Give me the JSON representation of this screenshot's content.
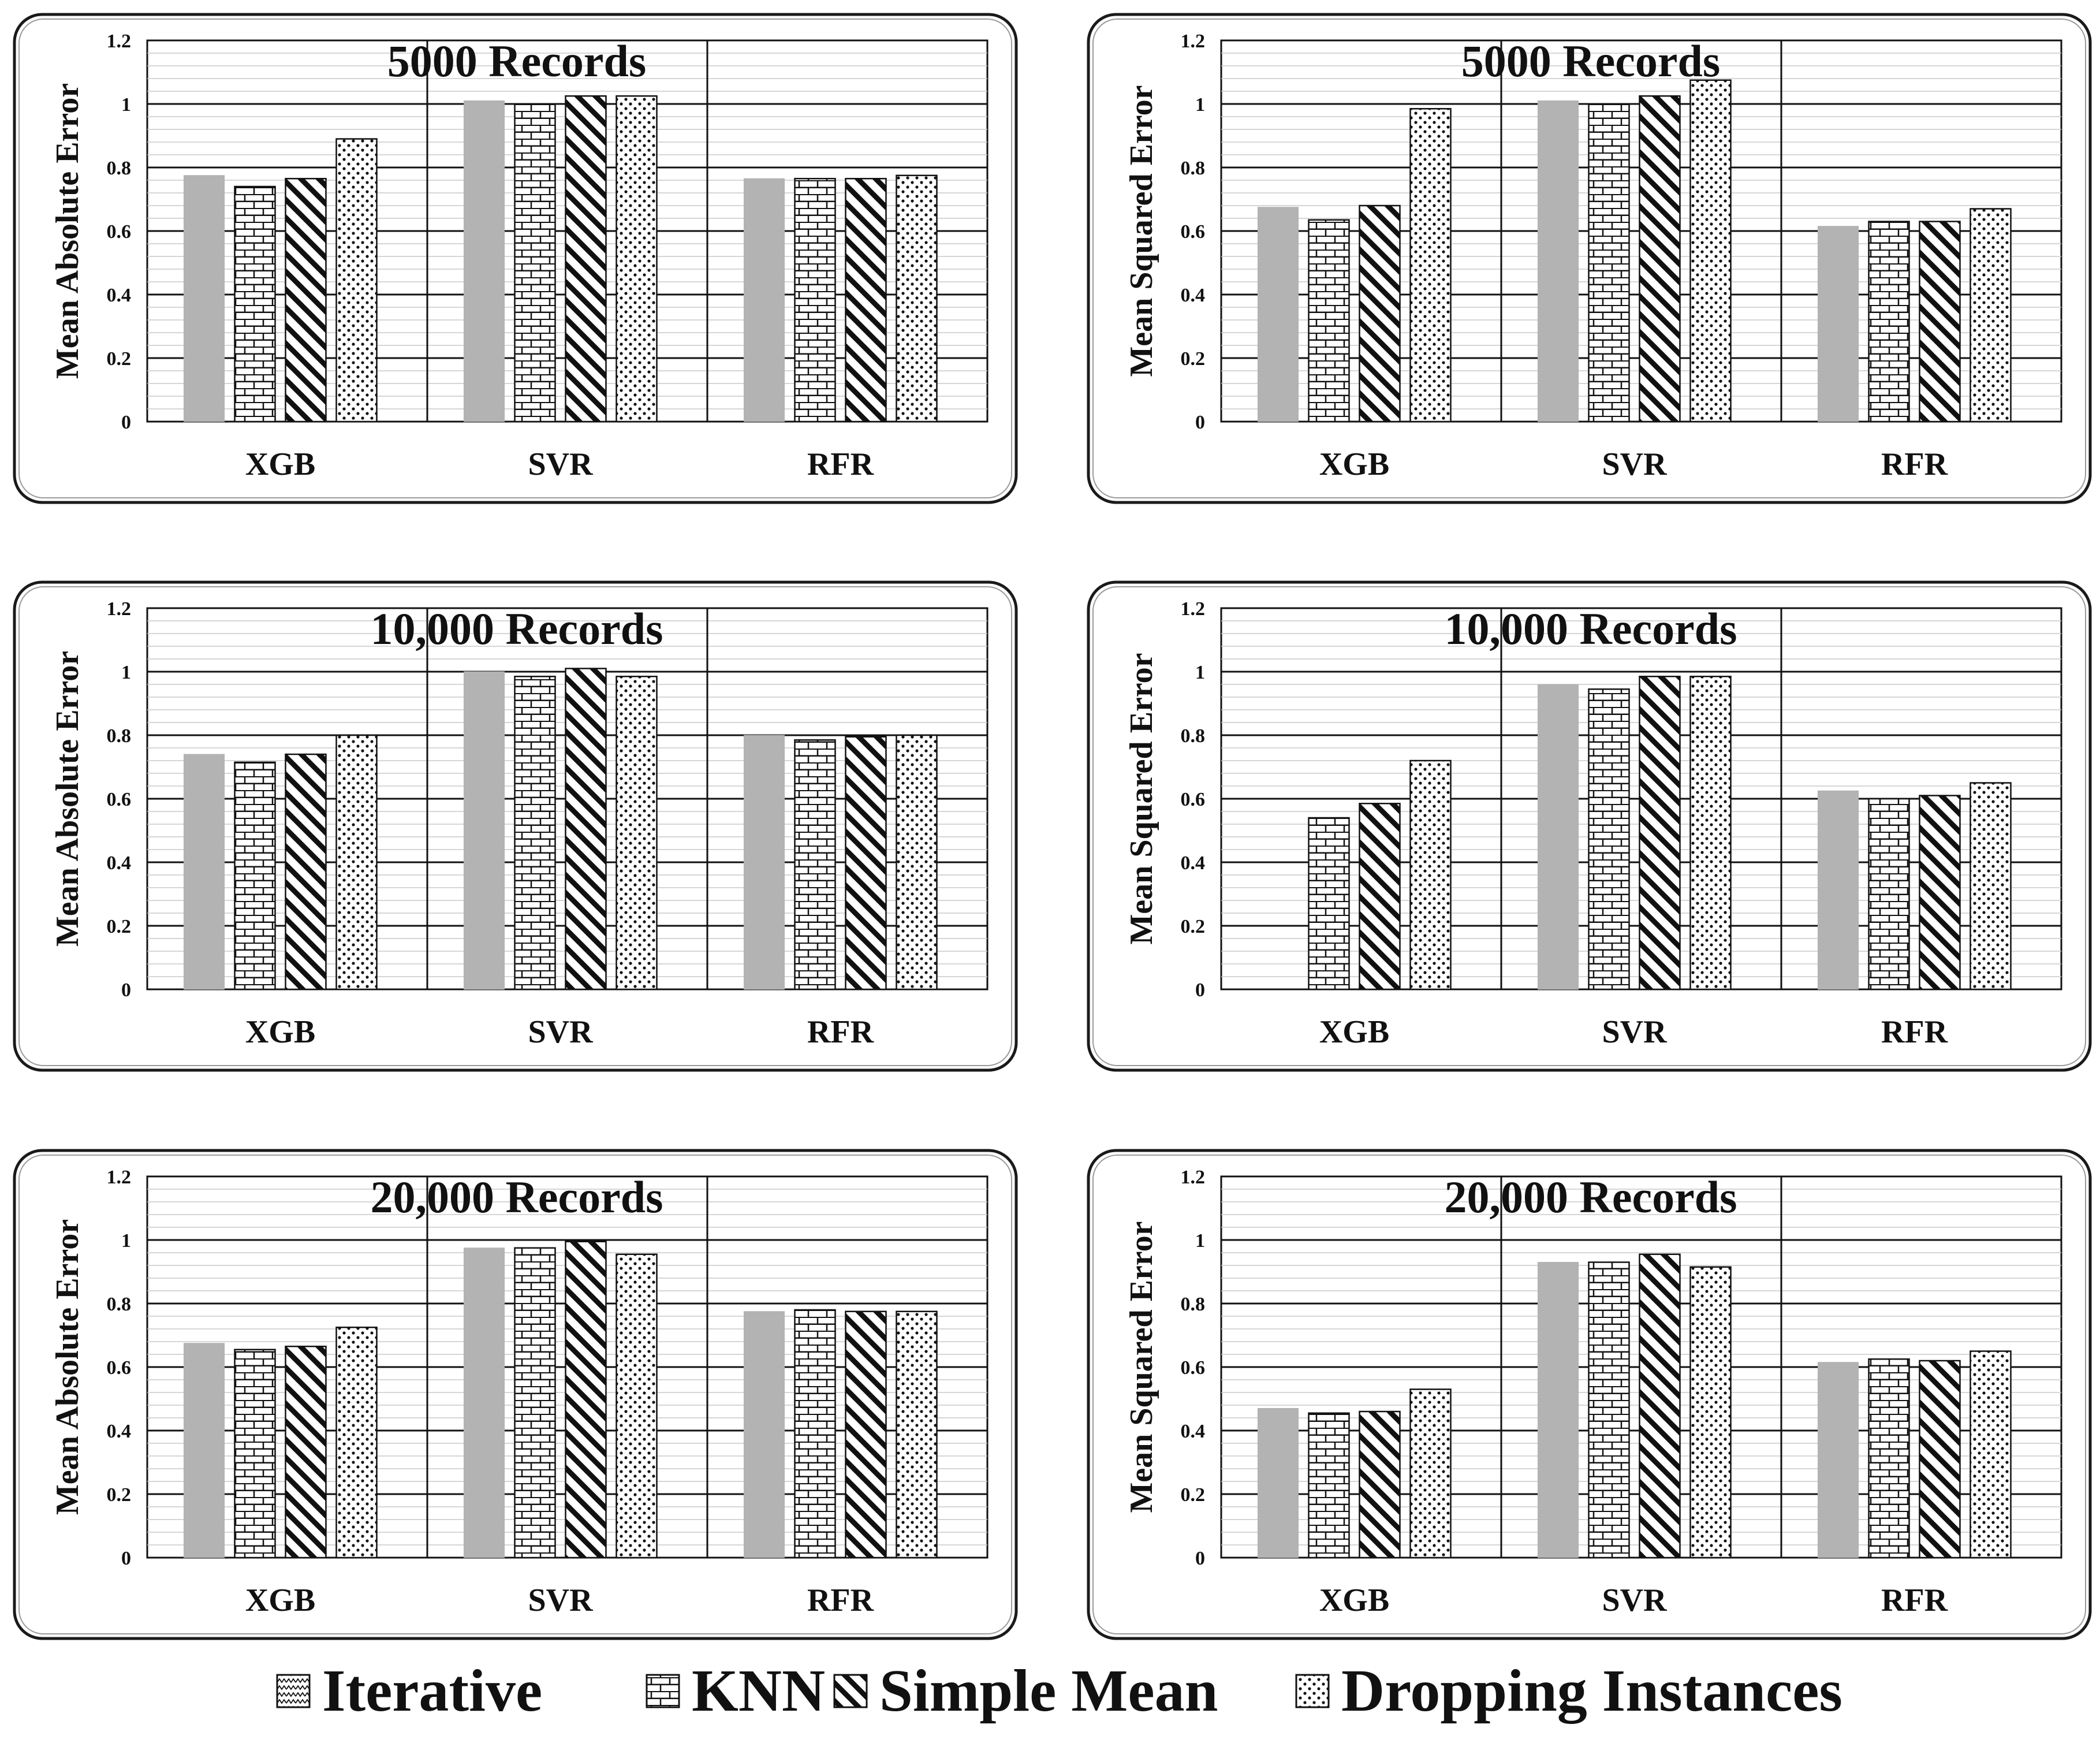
{
  "chart_data": [
    {
      "type": "bar",
      "title": "5000 Records",
      "ylabel": "Mean Absolute Error",
      "categories": [
        "XGB",
        "SVR",
        "RFR"
      ],
      "ylim": [
        0,
        1.2
      ],
      "yticks": [
        "0",
        "0.2",
        "0.4",
        "0.6",
        "0.8",
        "1",
        "1.2"
      ],
      "series": [
        {
          "name": "Iterative",
          "values": [
            0.775,
            1.01,
            0.765
          ]
        },
        {
          "name": "KNN",
          "values": [
            0.74,
            1.0,
            0.765
          ]
        },
        {
          "name": "Simple Mean",
          "values": [
            0.765,
            1.025,
            0.765
          ]
        },
        {
          "name": "Dropping Instances",
          "values": [
            0.89,
            1.025,
            0.775
          ]
        }
      ]
    },
    {
      "type": "bar",
      "title": "5000 Records",
      "ylabel": "Mean Squared Error",
      "categories": [
        "XGB",
        "SVR",
        "RFR"
      ],
      "ylim": [
        0,
        1.2
      ],
      "yticks": [
        "0",
        "0.2",
        "0.4",
        "0.6",
        "0.8",
        "1",
        "1.2"
      ],
      "series": [
        {
          "name": "Iterative",
          "values": [
            0.675,
            1.01,
            0.615
          ]
        },
        {
          "name": "KNN",
          "values": [
            0.635,
            1.0,
            0.63
          ]
        },
        {
          "name": "Simple Mean",
          "values": [
            0.68,
            1.025,
            0.63
          ]
        },
        {
          "name": "Dropping Instances",
          "values": [
            0.985,
            1.075,
            0.67
          ]
        }
      ]
    },
    {
      "type": "bar",
      "title": "10,000 Records",
      "ylabel": "Mean Absolute Error",
      "categories": [
        "XGB",
        "SVR",
        "RFR"
      ],
      "ylim": [
        0,
        1.2
      ],
      "yticks": [
        "0",
        "0.2",
        "0.4",
        "0.6",
        "0.8",
        "1",
        "1.2"
      ],
      "series": [
        {
          "name": "Iterative",
          "values": [
            0.74,
            1.0,
            0.8
          ]
        },
        {
          "name": "KNN",
          "values": [
            0.715,
            0.985,
            0.785
          ]
        },
        {
          "name": "Simple Mean",
          "values": [
            0.74,
            1.01,
            0.795
          ]
        },
        {
          "name": "Dropping Instances",
          "values": [
            0.8,
            0.985,
            0.8
          ]
        }
      ]
    },
    {
      "type": "bar",
      "title": "10,000 Records",
      "ylabel": "Mean Squared Error",
      "categories": [
        "XGB",
        "SVR",
        "RFR"
      ],
      "ylim": [
        0,
        1.2
      ],
      "yticks": [
        "0",
        "0.2",
        "0.4",
        "0.6",
        "0.8",
        "1",
        "1.2"
      ],
      "series": [
        {
          "name": "Iterative",
          "values": [
            0.0,
            0.96,
            0.625
          ]
        },
        {
          "name": "KNN",
          "values": [
            0.54,
            0.945,
            0.6
          ]
        },
        {
          "name": "Simple Mean",
          "values": [
            0.585,
            0.985,
            0.61
          ]
        },
        {
          "name": "Dropping Instances",
          "values": [
            0.72,
            0.985,
            0.65
          ]
        }
      ]
    },
    {
      "type": "bar",
      "title": "20,000 Records",
      "ylabel": "Mean Absolute Error",
      "categories": [
        "XGB",
        "SVR",
        "RFR"
      ],
      "ylim": [
        0,
        1.2
      ],
      "yticks": [
        "0",
        "0.2",
        "0.4",
        "0.6",
        "0.8",
        "1",
        "1.2"
      ],
      "series": [
        {
          "name": "Iterative",
          "values": [
            0.675,
            0.975,
            0.775
          ]
        },
        {
          "name": "KNN",
          "values": [
            0.655,
            0.975,
            0.78
          ]
        },
        {
          "name": "Simple Mean",
          "values": [
            0.665,
            0.995,
            0.775
          ]
        },
        {
          "name": "Dropping Instances",
          "values": [
            0.725,
            0.955,
            0.775
          ]
        }
      ]
    },
    {
      "type": "bar",
      "title": "20,000 Records",
      "ylabel": "Mean Squared Error",
      "categories": [
        "XGB",
        "SVR",
        "RFR"
      ],
      "ylim": [
        0,
        1.2
      ],
      "yticks": [
        "0",
        "0.2",
        "0.4",
        "0.6",
        "0.8",
        "1",
        "1.2"
      ],
      "series": [
        {
          "name": "Iterative",
          "values": [
            0.47,
            0.93,
            0.615
          ]
        },
        {
          "name": "KNN",
          "values": [
            0.455,
            0.93,
            0.625
          ]
        },
        {
          "name": "Simple Mean",
          "values": [
            0.46,
            0.955,
            0.62
          ]
        },
        {
          "name": "Dropping Instances",
          "values": [
            0.53,
            0.915,
            0.65
          ]
        }
      ]
    }
  ],
  "legend": {
    "position": "bottom",
    "items": [
      {
        "label": "Iterative",
        "pattern": "zigzag-icon"
      },
      {
        "label": "KNN",
        "pattern": "brick-icon"
      },
      {
        "label": "Simple Mean",
        "pattern": "diagonal-stripe-icon"
      },
      {
        "label": "Dropping Instances",
        "pattern": "dots-icon"
      }
    ]
  },
  "colors": {
    "iterative_fill": "#b3b3b3",
    "ink": "#111111",
    "background": "#ffffff"
  }
}
